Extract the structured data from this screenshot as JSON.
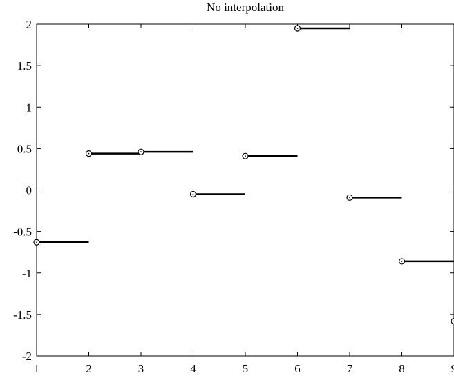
{
  "chart_data": {
    "type": "line",
    "title": "No interpolation",
    "xlabel": "",
    "ylabel": "",
    "xlim": [
      1,
      9
    ],
    "ylim": [
      -2,
      2
    ],
    "x_ticks": [
      1,
      2,
      3,
      4,
      5,
      6,
      7,
      8,
      9
    ],
    "y_ticks": [
      -2,
      -1.5,
      -1,
      -0.5,
      0,
      0.5,
      1,
      1.5,
      2
    ],
    "x_tick_labels": [
      "1",
      "2",
      "3",
      "4",
      "5",
      "6",
      "7",
      "8",
      "9"
    ],
    "y_tick_labels": [
      "-2",
      "-1.5",
      "-1",
      "-0.5",
      "0",
      "0.5",
      "1",
      "1.5",
      "2"
    ],
    "grid": false,
    "series": [
      {
        "style": "zero-order hold steps with circle markers",
        "color": "#000000",
        "x": [
          1,
          2,
          3,
          4,
          5,
          6,
          7,
          8,
          9
        ],
        "y": [
          -0.63,
          0.44,
          0.46,
          -0.05,
          0.41,
          1.95,
          -0.09,
          -0.86,
          -1.58
        ]
      }
    ]
  }
}
